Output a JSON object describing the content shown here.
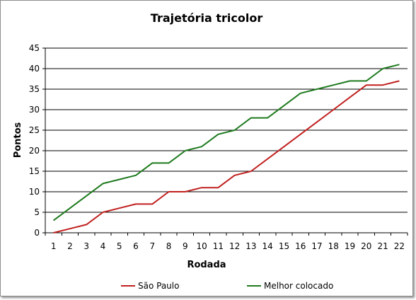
{
  "chart_data": {
    "type": "line",
    "title": "Trajetória tricolor",
    "xlabel": "Rodada",
    "ylabel": "Pontos",
    "categories": [
      "1",
      "2",
      "3",
      "4",
      "5",
      "6",
      "7",
      "8",
      "9",
      "10",
      "11",
      "12",
      "13",
      "14",
      "15",
      "16",
      "17",
      "18",
      "19",
      "20",
      "21",
      "22"
    ],
    "ylim": [
      0,
      45
    ],
    "yticks": [
      "0",
      "5",
      "10",
      "15",
      "20",
      "25",
      "30",
      "35",
      "40",
      "45"
    ],
    "grid": true,
    "legend_position": "bottom",
    "series": [
      {
        "name": "São Paulo",
        "color": "#c0201e",
        "values": [
          0,
          1,
          2,
          5,
          6,
          7,
          7,
          10,
          10,
          11,
          11,
          14,
          15,
          18,
          21,
          24,
          27,
          30,
          33,
          36,
          36,
          37
        ]
      },
      {
        "name": "Melhor colocado",
        "color": "#1e7a1e",
        "values": [
          3,
          6,
          9,
          12,
          13,
          14,
          17,
          17,
          20,
          21,
          24,
          25,
          28,
          28,
          31,
          34,
          35,
          36,
          37,
          37,
          40,
          41
        ]
      }
    ]
  }
}
